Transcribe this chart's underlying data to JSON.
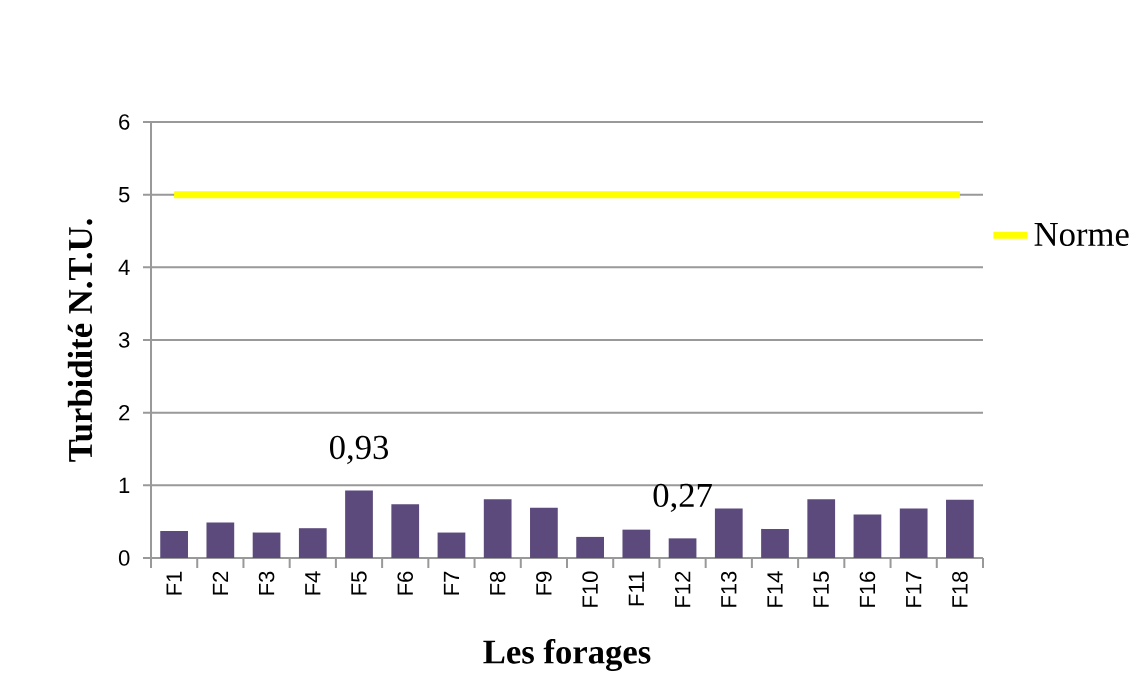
{
  "chart_data": {
    "type": "bar",
    "xlabel": "Les forages",
    "ylabel": "Turbidité N.T.U.",
    "categories": [
      "F1",
      "F2",
      "F3",
      "F4",
      "F5",
      "F6",
      "F7",
      "F8",
      "F9",
      "F10",
      "F11",
      "F12",
      "F13",
      "F14",
      "F15",
      "F16",
      "F17",
      "F18"
    ],
    "series": [
      {
        "color": "#5b4a7b",
        "values": [
          0.37,
          0.49,
          0.35,
          0.41,
          0.93,
          0.74,
          0.35,
          0.81,
          0.69,
          0.29,
          0.39,
          0.27,
          0.68,
          0.4,
          0.81,
          0.6,
          0.68,
          0.8
        ],
        "value_labels": [
          null,
          null,
          null,
          null,
          "0,93",
          null,
          null,
          null,
          null,
          null,
          null,
          "0,27",
          null,
          null,
          null,
          null,
          null,
          null
        ]
      },
      {
        "type": "line",
        "name": "Norme",
        "color": "#ffff00",
        "values": [
          5,
          5,
          5,
          5,
          5,
          5,
          5,
          5,
          5,
          5,
          5,
          5,
          5,
          5,
          5,
          5,
          5,
          5
        ]
      }
    ],
    "ylim": [
      0,
      6
    ],
    "yticks": [
      0,
      1,
      2,
      3,
      4,
      5,
      6
    ],
    "grid": "y",
    "legend": "right",
    "marker": "none"
  }
}
